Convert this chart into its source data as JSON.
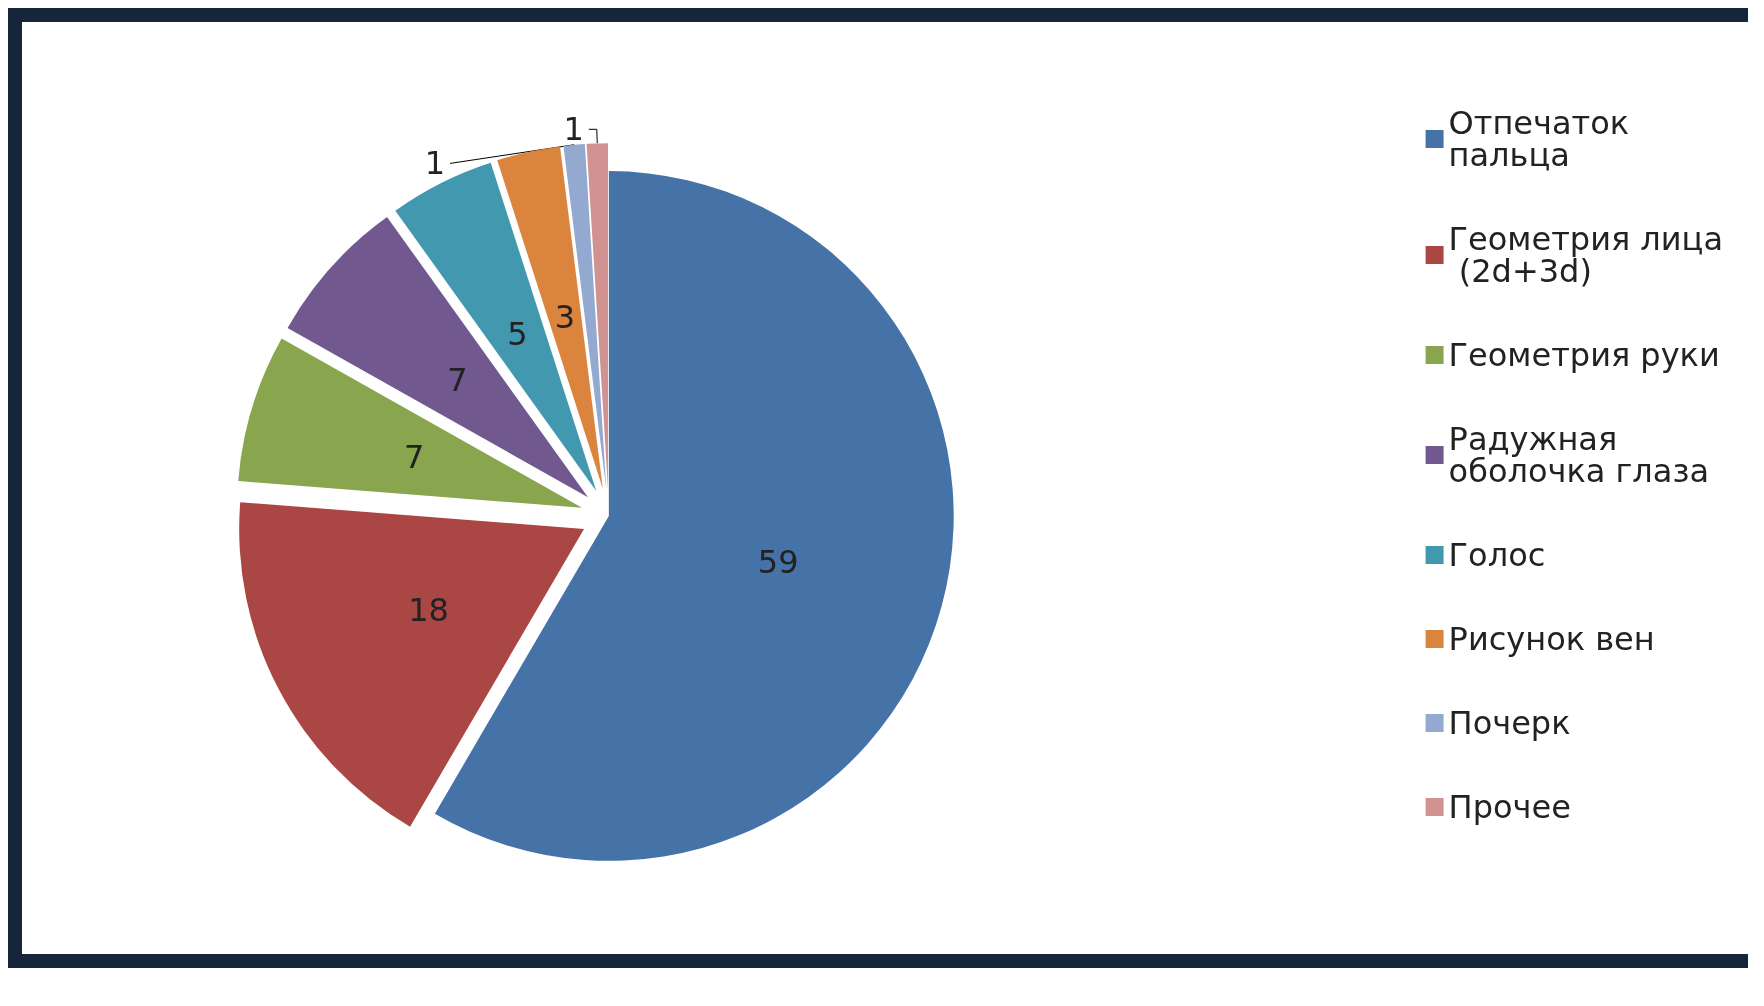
{
  "chart_data": {
    "type": "pie",
    "categories": [
      "Отпечаток пальца",
      "Геометрия лица (2d+3d)",
      "Геометрия руки",
      "Радужная оболочка глаза",
      "Голос",
      "Рисунок вен",
      "Почерк",
      "Прочее"
    ],
    "values": [
      59,
      18,
      7,
      7,
      5,
      3,
      1,
      1
    ],
    "colors": [
      "#4572a7",
      "#aa4643",
      "#89a54e",
      "#71588f",
      "#4198af",
      "#db843d",
      "#93a9cf",
      "#d19392"
    ],
    "data_labels": true,
    "legend": "top right"
  }
}
